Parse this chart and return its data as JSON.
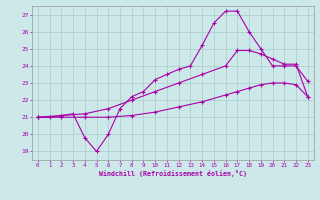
{
  "xlabel": "Windchill (Refroidissement éolien,°C)",
  "bg_color": "#cce8e8",
  "line_color": "#aa00aa",
  "grid_color": "#aacccc",
  "xlim": [
    -0.5,
    23.5
  ],
  "ylim": [
    18.5,
    27.5
  ],
  "xticks": [
    0,
    1,
    2,
    3,
    4,
    5,
    6,
    7,
    8,
    9,
    10,
    11,
    12,
    13,
    14,
    15,
    16,
    17,
    18,
    19,
    20,
    21,
    22,
    23
  ],
  "yticks": [
    19,
    20,
    21,
    22,
    23,
    24,
    25,
    26,
    27
  ],
  "line1_x": [
    0,
    1,
    2,
    3,
    4,
    5,
    6,
    7,
    8,
    9,
    10,
    11,
    12,
    13,
    14,
    15,
    16,
    17,
    18,
    19,
    20,
    21,
    22,
    23
  ],
  "line1_y": [
    21.0,
    21.0,
    21.1,
    21.2,
    19.8,
    19.0,
    20.0,
    21.5,
    22.2,
    22.5,
    23.2,
    23.5,
    23.8,
    24.0,
    25.2,
    26.5,
    27.2,
    27.2,
    26.0,
    25.0,
    24.0,
    24.0,
    24.0,
    23.1
  ],
  "line2_x": [
    0,
    2,
    4,
    6,
    8,
    10,
    12,
    14,
    16,
    17,
    18,
    19,
    20,
    21,
    22,
    23
  ],
  "line2_y": [
    21.0,
    21.1,
    21.2,
    21.5,
    22.0,
    22.5,
    23.0,
    23.5,
    24.0,
    24.9,
    24.9,
    24.7,
    24.4,
    24.1,
    24.1,
    22.2
  ],
  "line3_x": [
    0,
    2,
    4,
    6,
    8,
    10,
    12,
    14,
    16,
    17,
    18,
    19,
    20,
    21,
    22,
    23
  ],
  "line3_y": [
    21.0,
    21.0,
    21.0,
    21.0,
    21.1,
    21.3,
    21.6,
    21.9,
    22.3,
    22.5,
    22.7,
    22.9,
    23.0,
    23.0,
    22.9,
    22.2
  ]
}
